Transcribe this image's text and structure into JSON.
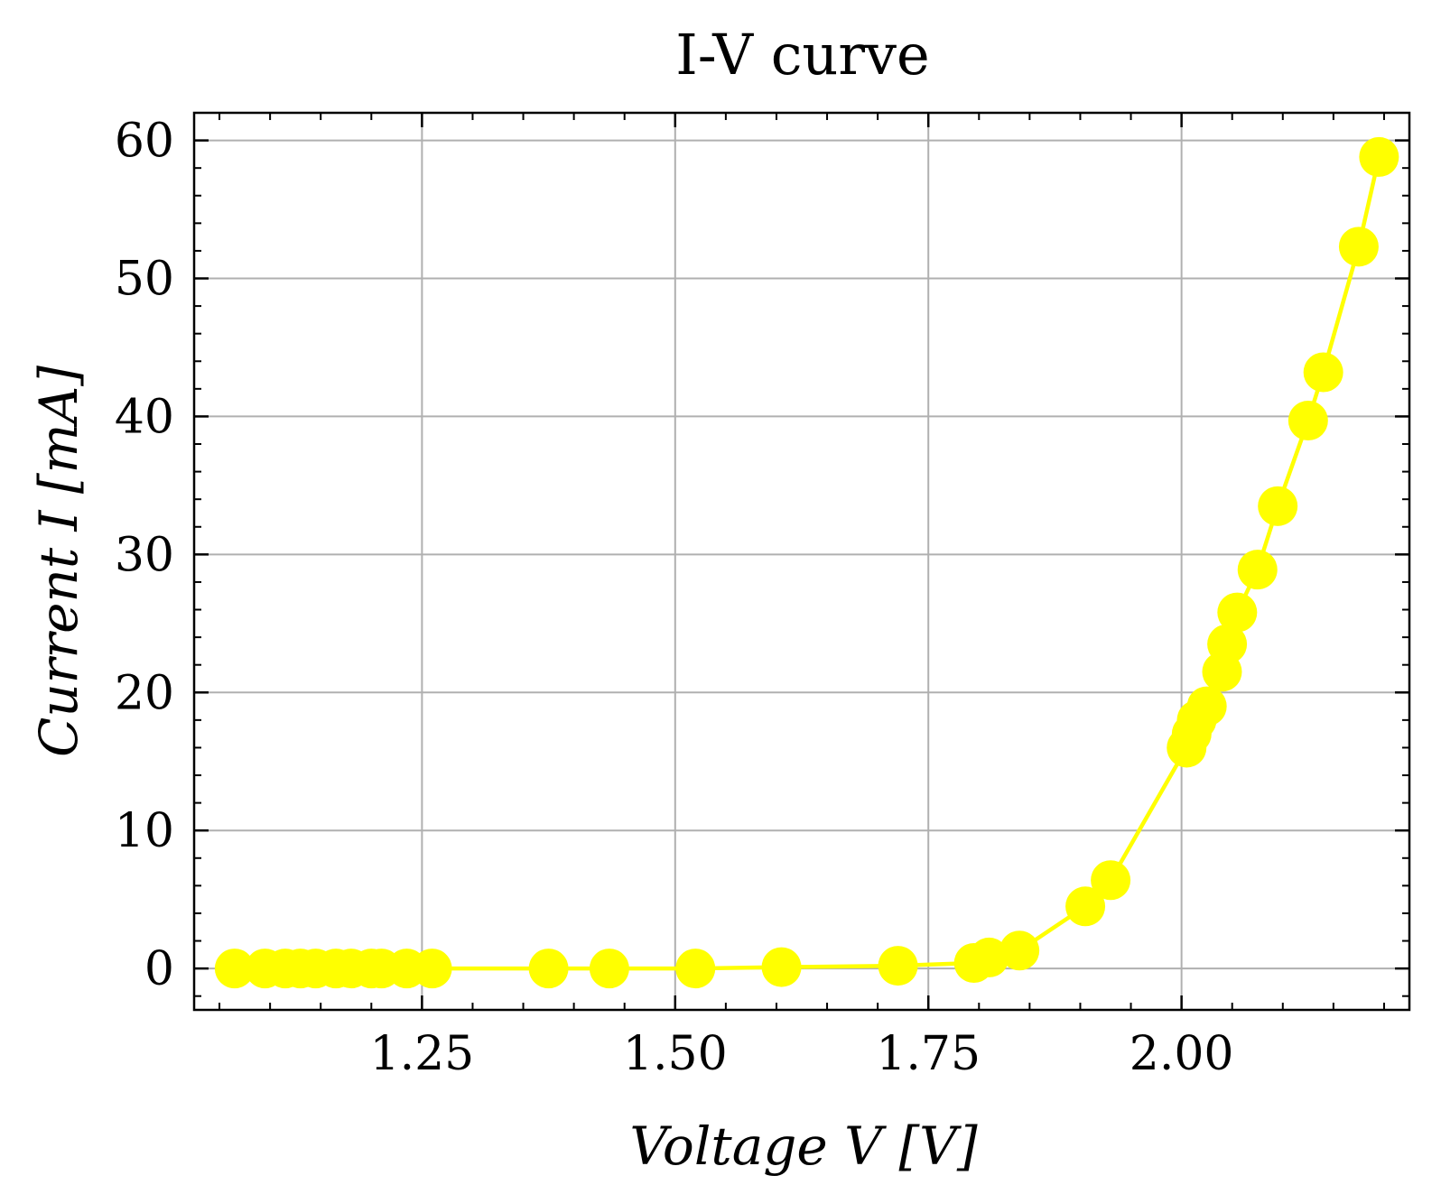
{
  "chart_data": {
    "type": "line",
    "title": "I-V curve",
    "xlabel": "Voltage V [V]",
    "ylabel": "Current I [mA]",
    "xlim": [
      1.025,
      2.225
    ],
    "ylim": [
      -3,
      62
    ],
    "xticks": [
      "1.25",
      "1.50",
      "1.75",
      "2.00"
    ],
    "yticks": [
      "0",
      "10",
      "20",
      "30",
      "40",
      "50",
      "60"
    ],
    "grid": true,
    "legend": "none",
    "colors": {
      "series": "#ffff00",
      "grid": "#b0b0b0",
      "axis": "#000000"
    },
    "series": [
      {
        "x": [
          1.065,
          1.095,
          1.115,
          1.13,
          1.145,
          1.165,
          1.18,
          1.2,
          1.21,
          1.235,
          1.26,
          1.375,
          1.435,
          1.52,
          1.605,
          1.72,
          1.795,
          1.81,
          1.84,
          1.905,
          1.93,
          2.005,
          2.01,
          2.015,
          2.025,
          2.04,
          2.045,
          2.055,
          2.075,
          2.095,
          2.125,
          2.14,
          2.175,
          2.195
        ],
        "y": [
          0,
          0,
          0,
          0,
          0,
          0,
          0,
          0,
          0,
          0,
          0,
          0,
          0,
          0,
          0.1,
          0.2,
          0.4,
          0.8,
          1.3,
          4.5,
          6.4,
          16,
          17,
          18,
          19,
          21.5,
          23.5,
          25.8,
          28.9,
          33.5,
          39.7,
          43.2,
          52.3,
          58.8
        ]
      }
    ]
  }
}
